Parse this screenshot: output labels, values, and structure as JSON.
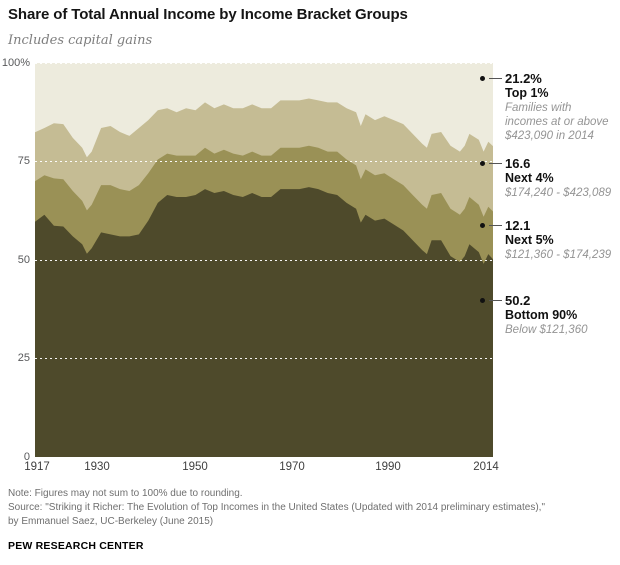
{
  "header": {
    "title": "Share of Total Annual Income by Income Bracket Groups",
    "subtitle": "Includes capital gains"
  },
  "chart_data": {
    "type": "area",
    "stacked": true,
    "title": "Share of Total Annual Income by Income Bracket Groups",
    "xlabel": "",
    "ylabel": "",
    "x_range": [
      1917,
      2014
    ],
    "ylim": [
      0,
      100
    ],
    "grid": "horizontal dotted white lines at 25, 50, 75, 100",
    "legend_position": "right-side annotations",
    "x_tick_labels": [
      "1917",
      "1930",
      "1950",
      "1970",
      "1990",
      "2014"
    ],
    "y_tick_labels": [
      "100%",
      "75",
      "50",
      "25",
      "0"
    ],
    "years": [
      1917,
      1919,
      1921,
      1923,
      1925,
      1927,
      1928,
      1929,
      1931,
      1933,
      1935,
      1937,
      1939,
      1941,
      1943,
      1945,
      1947,
      1949,
      1951,
      1953,
      1955,
      1957,
      1959,
      1961,
      1963,
      1965,
      1967,
      1969,
      1971,
      1973,
      1975,
      1977,
      1979,
      1981,
      1983,
      1985,
      1986,
      1987,
      1989,
      1991,
      1993,
      1995,
      1997,
      1999,
      2000,
      2001,
      2003,
      2005,
      2007,
      2008,
      2009,
      2011,
      2012,
      2013,
      2014
    ],
    "series": [
      {
        "name": "Bottom 90%",
        "color": "#4e4a2b",
        "values": [
          59.7,
          61.5,
          58.7,
          58.5,
          56.0,
          54.0,
          51.6,
          53.0,
          57.0,
          56.5,
          56.0,
          56.0,
          56.5,
          60.0,
          64.5,
          66.5,
          66.0,
          66.0,
          66.5,
          68.0,
          67.0,
          67.5,
          66.5,
          66.0,
          67.0,
          66.0,
          66.0,
          68.0,
          68.0,
          68.0,
          68.5,
          68.0,
          67.0,
          66.5,
          64.5,
          63.0,
          59.5,
          61.5,
          60.0,
          60.5,
          59.0,
          57.5,
          55.0,
          52.5,
          51.5,
          55.0,
          55.0,
          51.0,
          49.5,
          51.0,
          54.0,
          52.0,
          49.0,
          51.5,
          50.2
        ]
      },
      {
        "name": "Next 5%",
        "color": "#9a9156",
        "values": [
          10.3,
          10.0,
          12.0,
          12.0,
          11.5,
          11.0,
          11.0,
          11.0,
          12.0,
          12.5,
          12.0,
          11.5,
          12.5,
          12.0,
          11.0,
          10.5,
          10.5,
          10.5,
          10.0,
          10.5,
          10.0,
          10.5,
          10.5,
          10.5,
          10.5,
          10.5,
          10.5,
          10.5,
          10.5,
          10.5,
          10.5,
          10.5,
          10.5,
          11.0,
          11.0,
          11.0,
          11.0,
          11.5,
          11.5,
          11.5,
          11.5,
          11.5,
          11.5,
          11.5,
          11.5,
          11.5,
          12.0,
          12.0,
          12.0,
          12.0,
          12.0,
          12.0,
          12.0,
          12.0,
          12.1
        ]
      },
      {
        "name": "Next 4%",
        "color": "#c5bc94",
        "values": [
          12.4,
          12.0,
          14.0,
          14.0,
          13.5,
          13.5,
          13.5,
          13.5,
          14.5,
          15.0,
          14.5,
          14.0,
          14.5,
          13.5,
          12.5,
          11.5,
          11.0,
          12.0,
          11.5,
          11.5,
          11.5,
          11.5,
          11.5,
          12.0,
          12.0,
          12.0,
          12.0,
          12.0,
          12.0,
          12.0,
          12.0,
          12.0,
          12.5,
          12.5,
          13.0,
          13.5,
          13.5,
          14.0,
          14.0,
          14.5,
          15.0,
          15.5,
          15.5,
          15.5,
          15.5,
          15.5,
          15.5,
          16.0,
          16.0,
          16.0,
          16.0,
          16.5,
          16.5,
          16.5,
          16.6
        ]
      },
      {
        "name": "Top 1%",
        "color": "#edebdd",
        "values": [
          17.6,
          16.5,
          15.3,
          15.5,
          19.0,
          21.5,
          23.9,
          22.5,
          16.5,
          16.0,
          17.5,
          18.5,
          16.5,
          14.5,
          12.0,
          11.5,
          12.5,
          11.5,
          12.0,
          10.0,
          11.5,
          10.5,
          11.5,
          11.5,
          10.5,
          11.5,
          11.5,
          9.5,
          9.5,
          9.5,
          9.0,
          9.5,
          10.0,
          10.0,
          11.5,
          12.5,
          16.0,
          13.0,
          14.5,
          13.5,
          14.5,
          15.5,
          18.0,
          20.5,
          21.5,
          18.0,
          17.5,
          21.0,
          22.5,
          21.0,
          18.0,
          19.5,
          22.5,
          20.0,
          21.2
        ]
      }
    ]
  },
  "annotations": [
    {
      "value": "21.2%",
      "label": "Top 1%",
      "desc": [
        "Families with",
        "incomes at or above",
        "$423,090 in 2014"
      ]
    },
    {
      "value": "16.6",
      "label": "Next 4%",
      "desc": [
        "$174,240 - $423,089"
      ]
    },
    {
      "value": "12.1",
      "label": "Next 5%",
      "desc": [
        "$121,360 - $174,239"
      ]
    },
    {
      "value": "50.2",
      "label": "Bottom 90%",
      "desc": [
        "Below $121,360"
      ]
    }
  ],
  "footer": {
    "note": "Note: Figures may not sum to 100% due to rounding.",
    "source_line1": "Source: \"Striking it Richer: The Evolution of Top Incomes in the United States (Updated with 2014 preliminary estimates),\"",
    "source_line2": "by Emmanuel Saez, UC-Berkeley (June 2015)",
    "brand": "PEW RESEARCH CENTER"
  }
}
